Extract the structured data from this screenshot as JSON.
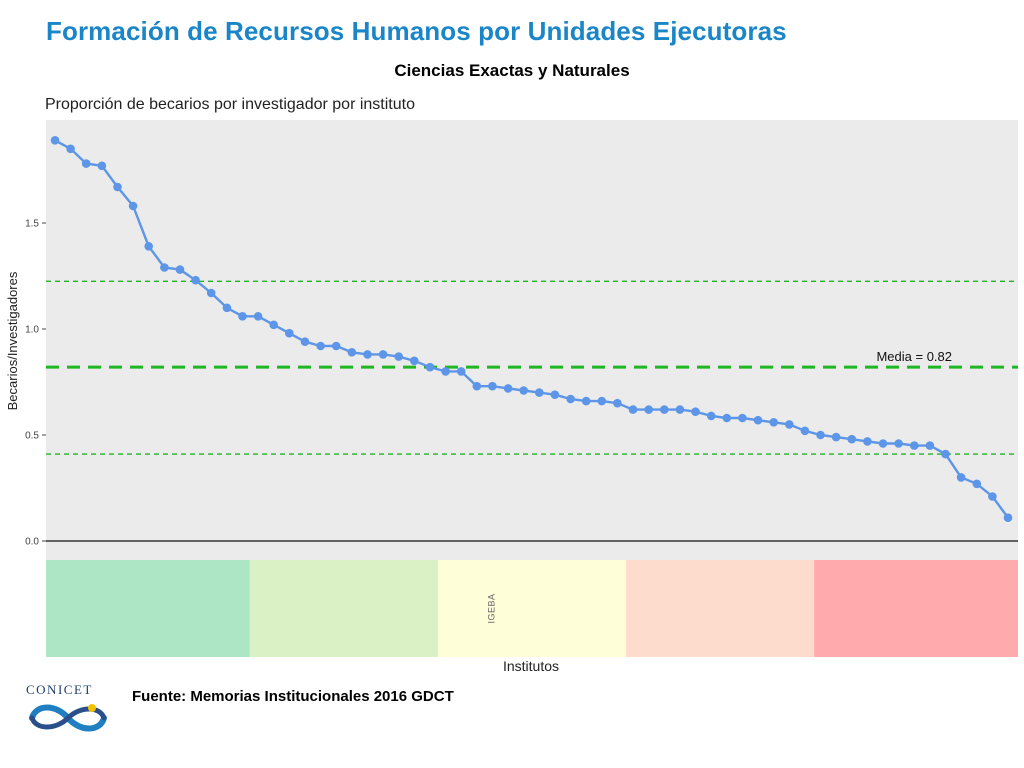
{
  "header": {
    "title": "Formación de Recursos Humanos por Unidades Ejecutoras",
    "subtitle": "Ciencias Exactas y Naturales"
  },
  "chart_data": {
    "type": "line",
    "title": "Proporción de becarios por investigador por instituto",
    "xlabel": "Institutos",
    "ylabel": "Becarios/Investigadores",
    "ylim": [
      0,
      1.9
    ],
    "yticks": [
      0.0,
      0.5,
      1.0,
      1.5
    ],
    "ytick_labels": [
      "0.0",
      "0.5",
      "1.0",
      "1.5"
    ],
    "grid": false,
    "series": [
      {
        "values": [
          1.89,
          1.85,
          1.78,
          1.77,
          1.67,
          1.58,
          1.39,
          1.29,
          1.28,
          1.23,
          1.17,
          1.1,
          1.06,
          1.06,
          1.02,
          0.98,
          0.94,
          0.92,
          0.92,
          0.89,
          0.88,
          0.88,
          0.87,
          0.85,
          0.82,
          0.8,
          0.8,
          0.73,
          0.73,
          0.72,
          0.71,
          0.7,
          0.69,
          0.67,
          0.66,
          0.66,
          0.65,
          0.62,
          0.62,
          0.62,
          0.62,
          0.61,
          0.59,
          0.58,
          0.58,
          0.57,
          0.56,
          0.55,
          0.52,
          0.5,
          0.49,
          0.48,
          0.47,
          0.46,
          0.46,
          0.45,
          0.45,
          0.41,
          0.3,
          0.27,
          0.21,
          0.11
        ],
        "color": "#5d96e8"
      }
    ],
    "reference_lines": [
      {
        "value": 0.82,
        "label": "Media = 0.82",
        "style": "thick-dashed",
        "color": "#1fb523"
      },
      {
        "value": 1.225,
        "label": "",
        "style": "thin-dashed",
        "color": "#1fb523"
      },
      {
        "value": 0.41,
        "label": "",
        "style": "thin-dashed",
        "color": "#1fb523"
      }
    ],
    "category_bands": [
      {
        "start": 0,
        "end": 13,
        "color": "#ade6c5",
        "label": ""
      },
      {
        "start": 13,
        "end": 25,
        "color": "#daf0c5",
        "label": ""
      },
      {
        "start": 25,
        "end": 37,
        "color": "#fefed9",
        "label": "IGEBA"
      },
      {
        "start": 37,
        "end": 49,
        "color": "#fddcce",
        "label": ""
      },
      {
        "start": 49,
        "end": 62,
        "color": "#ffaaac",
        "label": ""
      }
    ],
    "panel_background": "#ebebeb"
  },
  "footer": {
    "source": "Fuente: Memorias Institucionales 2016 GDCT",
    "logo_text": "CONICET"
  }
}
